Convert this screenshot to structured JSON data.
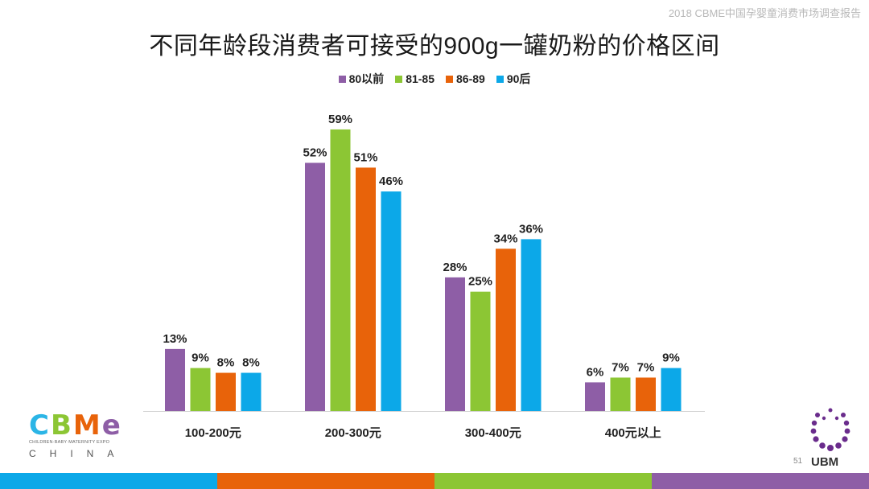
{
  "header": {
    "report_name": "2018 CBME中国孕婴童消费市场调查报告",
    "page_number": "51"
  },
  "logos": {
    "cbme": {
      "letters": [
        "C",
        "B",
        "M",
        "e"
      ],
      "tagline": "CHILDREN·BABY·MATERNITY EXPO",
      "country": "CHINA"
    },
    "ubm": {
      "text": "UBM"
    }
  },
  "colors": {
    "purple": "#8e5ea6",
    "green": "#8cc634",
    "orange": "#e8630a",
    "blue": "#0ca8e8"
  },
  "chart_data": {
    "type": "bar",
    "title": "不同年龄段消费者可接受的900g一罐奶粉的价格区间",
    "categories": [
      "100-200元",
      "200-300元",
      "300-400元",
      "400元以上"
    ],
    "series": [
      {
        "name": "80以前",
        "color": "#8e5ea6",
        "values": [
          13,
          52,
          28,
          6
        ],
        "labels": [
          "13%",
          "52%",
          "28%",
          "6%"
        ]
      },
      {
        "name": "81-85",
        "color": "#8cc634",
        "values": [
          9,
          59,
          25,
          7
        ],
        "labels": [
          "9%",
          "59%",
          "25%",
          "7%"
        ]
      },
      {
        "name": "86-89",
        "color": "#e8630a",
        "values": [
          8,
          51,
          34,
          7
        ],
        "labels": [
          "8%",
          "51%",
          "34%",
          "7%"
        ]
      },
      {
        "name": "90后",
        "color": "#0ca8e8",
        "values": [
          8,
          46,
          36,
          9
        ],
        "labels": [
          "8%",
          "46%",
          "36%",
          "9%"
        ]
      }
    ],
    "legend_position": "top-center",
    "grid": false,
    "ylim": [
      0,
      60
    ]
  }
}
